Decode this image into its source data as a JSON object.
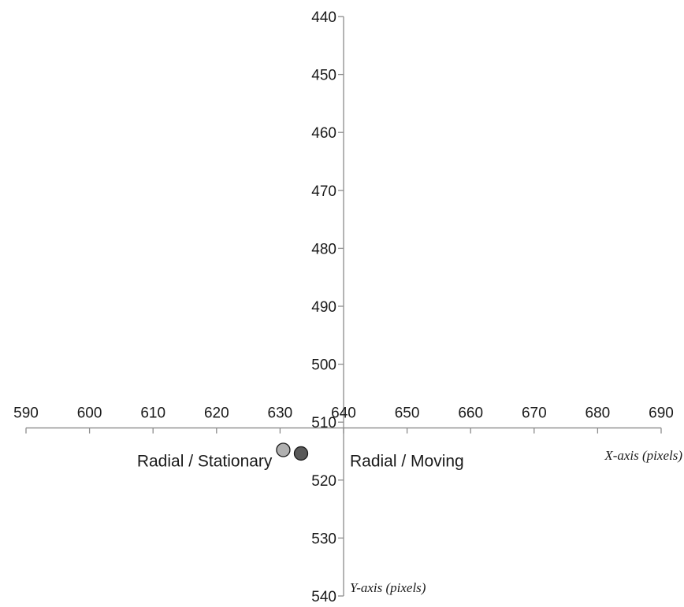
{
  "chart_data": {
    "type": "scatter",
    "xlabel": "X-axis (pixels)",
    "ylabel": "Y-axis (pixels)",
    "xlim": [
      590,
      690
    ],
    "ylim": [
      440,
      540
    ],
    "y_reversed": true,
    "x_ticks": [
      590,
      600,
      610,
      620,
      630,
      640,
      650,
      660,
      670,
      680,
      690
    ],
    "y_ticks": [
      440,
      450,
      460,
      470,
      480,
      490,
      500,
      510,
      520,
      530,
      540
    ],
    "axes_cross_at": {
      "x": 640,
      "y": 511
    },
    "grid": false,
    "legend": "none",
    "points": [
      {
        "label": "Radial / Stationary",
        "x": 630.5,
        "y": 514.8,
        "color": "#b0b0b0"
      },
      {
        "label": "Radial / Moving",
        "x": 633.3,
        "y": 515.4,
        "color": "#595959"
      }
    ]
  }
}
